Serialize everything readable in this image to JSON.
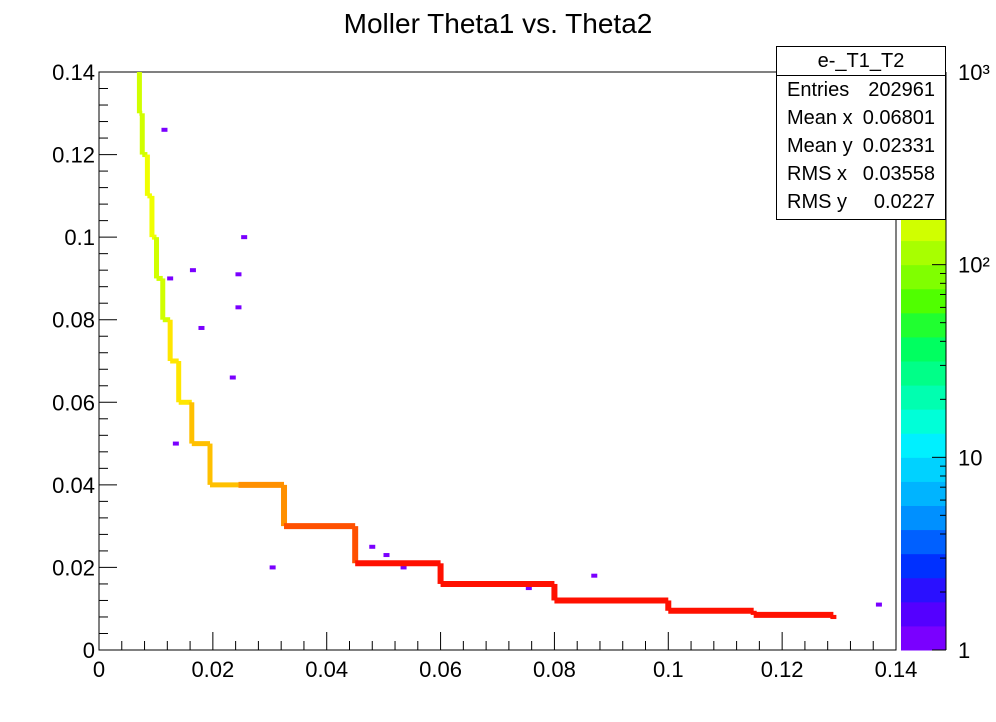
{
  "chart_data": {
    "type": "heatmap",
    "title": "Moller Theta1 vs. Theta2",
    "xlim": [
      0,
      0.14
    ],
    "ylim": [
      0,
      0.14
    ],
    "x_ticks": [
      "0",
      "0.02",
      "0.04",
      "0.06",
      "0.08",
      "0.1",
      "0.12",
      "0.14"
    ],
    "y_ticks": [
      "0",
      "0.02",
      "0.04",
      "0.06",
      "0.08",
      "0.1",
      "0.12",
      "0.14"
    ],
    "z_scale": "log",
    "z_range": [
      1,
      1000
    ],
    "z_ticks": [
      "1",
      "10",
      "10²",
      "10³"
    ],
    "grid": false,
    "stats": {
      "name": "e-_T1_T2",
      "rows": [
        {
          "label": "Entries",
          "value": "202961"
        },
        {
          "label": "Mean x",
          "value": "0.06801"
        },
        {
          "label": "Mean y",
          "value": "0.02331"
        },
        {
          "label": "RMS x",
          "value": "0.03558"
        },
        {
          "label": "RMS y",
          "value": "0.0227"
        }
      ]
    },
    "curve_points": [
      {
        "x": 0.0071,
        "y": 0.14,
        "z": 150
      },
      {
        "x": 0.0076,
        "y": 0.13,
        "z": 150
      },
      {
        "x": 0.0085,
        "y": 0.12,
        "z": 200
      },
      {
        "x": 0.0093,
        "y": 0.11,
        "z": 200
      },
      {
        "x": 0.0101,
        "y": 0.1,
        "z": 150
      },
      {
        "x": 0.0112,
        "y": 0.09,
        "z": 150
      },
      {
        "x": 0.0125,
        "y": 0.08,
        "z": 300
      },
      {
        "x": 0.014,
        "y": 0.07,
        "z": 300
      },
      {
        "x": 0.0163,
        "y": 0.06,
        "z": 350
      },
      {
        "x": 0.0195,
        "y": 0.05,
        "z": 400
      },
      {
        "x": 0.0245,
        "y": 0.04,
        "z": 500
      },
      {
        "x": 0.0325,
        "y": 0.03,
        "z": 700
      },
      {
        "x": 0.045,
        "y": 0.021,
        "z": 900
      },
      {
        "x": 0.06,
        "y": 0.016,
        "z": 900
      },
      {
        "x": 0.08,
        "y": 0.012,
        "z": 900
      },
      {
        "x": 0.1,
        "y": 0.0095,
        "z": 900
      },
      {
        "x": 0.115,
        "y": 0.0085,
        "z": 900
      },
      {
        "x": 0.129,
        "y": 0.0075,
        "z": 700
      }
    ],
    "scatter_points": [
      {
        "x": 0.0115,
        "y": 0.126,
        "z": 1
      },
      {
        "x": 0.0255,
        "y": 0.1,
        "z": 1
      },
      {
        "x": 0.0245,
        "y": 0.091,
        "z": 1
      },
      {
        "x": 0.0245,
        "y": 0.083,
        "z": 1
      },
      {
        "x": 0.0165,
        "y": 0.092,
        "z": 1
      },
      {
        "x": 0.0125,
        "y": 0.09,
        "z": 1
      },
      {
        "x": 0.018,
        "y": 0.078,
        "z": 1
      },
      {
        "x": 0.0235,
        "y": 0.066,
        "z": 1
      },
      {
        "x": 0.0175,
        "y": 0.05,
        "z": 1
      },
      {
        "x": 0.0135,
        "y": 0.05,
        "z": 1
      },
      {
        "x": 0.0305,
        "y": 0.02,
        "z": 1
      },
      {
        "x": 0.048,
        "y": 0.025,
        "z": 1
      },
      {
        "x": 0.0505,
        "y": 0.023,
        "z": 1
      },
      {
        "x": 0.0535,
        "y": 0.02,
        "z": 1
      },
      {
        "x": 0.0755,
        "y": 0.015,
        "z": 1
      },
      {
        "x": 0.087,
        "y": 0.018,
        "z": 1
      },
      {
        "x": 0.137,
        "y": 0.011,
        "z": 1
      }
    ]
  }
}
